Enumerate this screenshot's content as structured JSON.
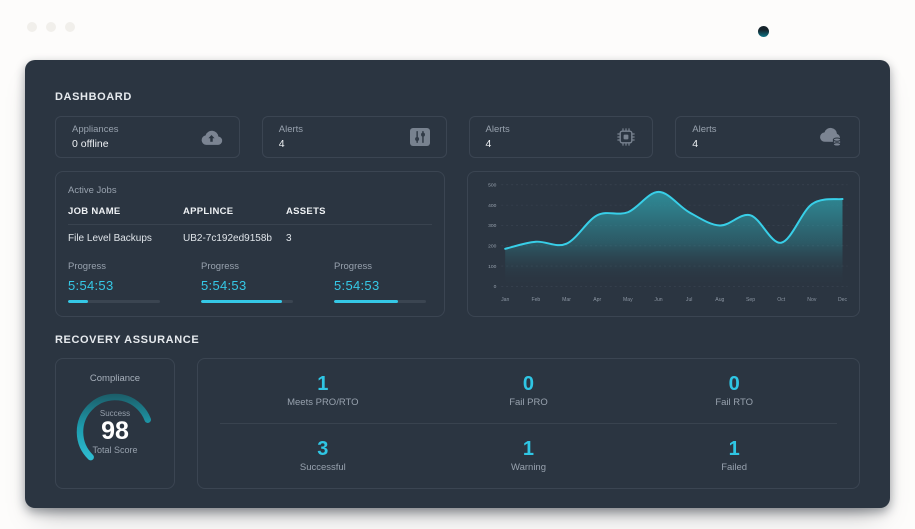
{
  "window": {
    "dots": [
      "window-dot-1",
      "window-dot-2",
      "window-dot-3"
    ],
    "status_dot_color": "#0d7486"
  },
  "colors": {
    "panel_bg": "#2b3541",
    "accent_cyan": "#35c8e6",
    "muted_text": "#98a2ae",
    "border": "#3b4552"
  },
  "header": {
    "title": "DASHBOARD"
  },
  "stat_cards": [
    {
      "label": "Appliances",
      "value": "0 offline",
      "icon": "cloud-upload-icon"
    },
    {
      "label": "Alerts",
      "value": "4",
      "icon": "sliders-icon"
    },
    {
      "label": "Alerts",
      "value": "4",
      "icon": "cpu-icon"
    },
    {
      "label": "Alerts",
      "value": "4",
      "icon": "cloud-database-icon"
    }
  ],
  "active_jobs": {
    "title": "Active Jobs",
    "columns": [
      "JOB NAME",
      "APPLINCE",
      "ASSETS"
    ],
    "rows": [
      {
        "job_name": "File Level Backups",
        "appliance": "UB2-7c192ed9158b",
        "assets": "3"
      }
    ],
    "progress_items": [
      {
        "label": "Progress",
        "time": "5:54:53",
        "percent": 22
      },
      {
        "label": "Progress",
        "time": "5:54:53",
        "percent": 88
      },
      {
        "label": "Progress",
        "time": "5:54:53",
        "percent": 70
      }
    ]
  },
  "chart_data": {
    "type": "area",
    "x": [
      "Jan",
      "Feb",
      "Mar",
      "Apr",
      "May",
      "Jun",
      "Jul",
      "Aug",
      "Sep",
      "Oct",
      "Nov",
      "Dec"
    ],
    "values": [
      185,
      220,
      210,
      350,
      365,
      465,
      365,
      300,
      350,
      215,
      405,
      430
    ],
    "title": "",
    "xlabel": "",
    "ylabel": "",
    "ylim": [
      0,
      500
    ],
    "yticks": [
      0,
      100,
      200,
      300,
      400,
      500
    ],
    "grid": true,
    "legend": false,
    "line_color": "#38cfe8",
    "fill_color": "#2f9aa6"
  },
  "recovery": {
    "title": "RECOVERY ASSURANCE",
    "compliance": {
      "title": "Compliance",
      "sub_label": "Success",
      "score": "98",
      "caption": "Total Score"
    },
    "stats": [
      {
        "value": "1",
        "label": "Meets PRO/RTO"
      },
      {
        "value": "0",
        "label": "Fail PRO"
      },
      {
        "value": "0",
        "label": "Fail RTO"
      },
      {
        "value": "3",
        "label": "Successful"
      },
      {
        "value": "1",
        "label": "Warning"
      },
      {
        "value": "1",
        "label": "Failed"
      }
    ]
  }
}
